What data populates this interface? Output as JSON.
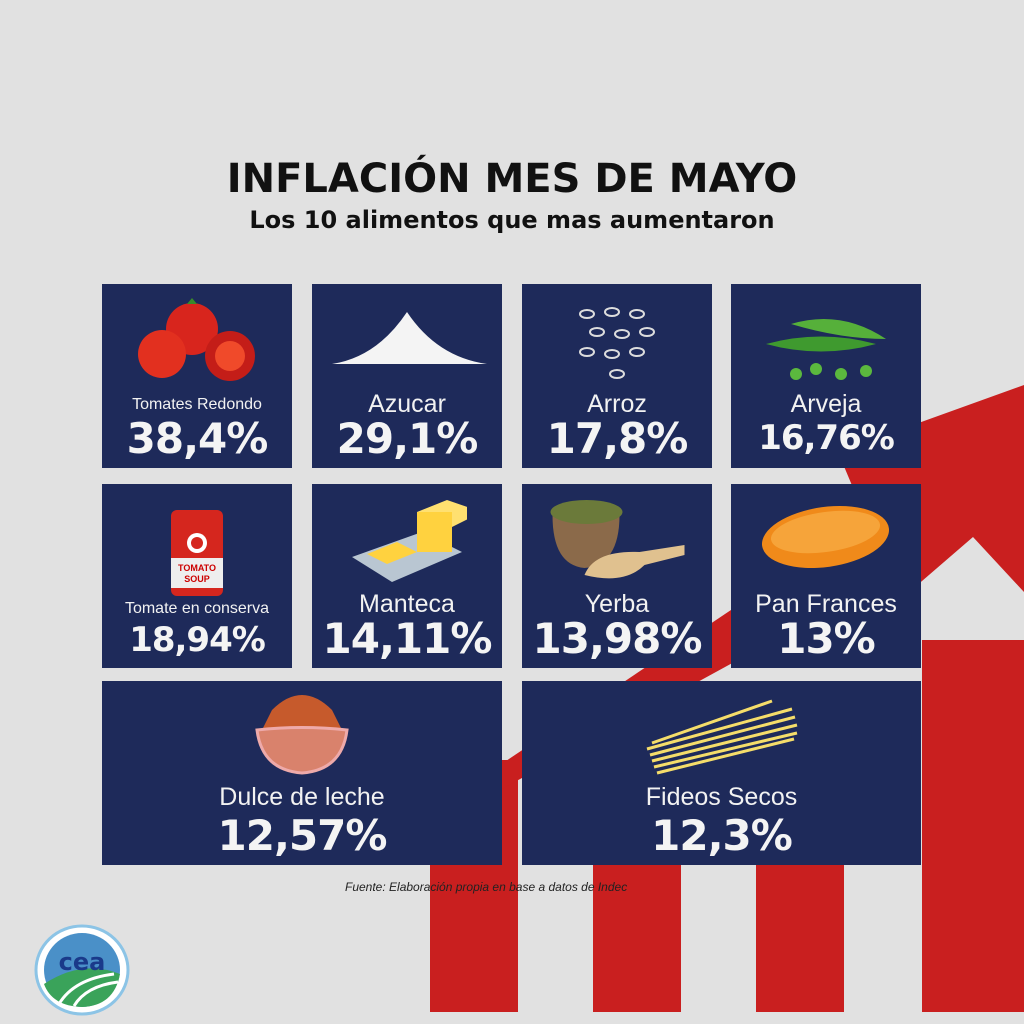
{
  "title": "INFLACIÓN MES DE MAYO",
  "subtitle": "Los 10 alimentos que mas aumentaron",
  "items": [
    {
      "label": "Tomates Redondo",
      "value": "38,4%",
      "icon": "tomato-icon"
    },
    {
      "label": "Azucar",
      "value": "29,1%",
      "icon": "sugar-icon"
    },
    {
      "label": "Arroz",
      "value": "17,8%",
      "icon": "rice-icon"
    },
    {
      "label": "Arveja",
      "value": "16,76%",
      "icon": "peas-icon"
    },
    {
      "label": "Tomate en conserva",
      "value": "18,94%",
      "icon": "tomato-can-icon",
      "can_text": "TOMATO SOUP"
    },
    {
      "label": "Manteca",
      "value": "14,11%",
      "icon": "butter-icon"
    },
    {
      "label": "Yerba",
      "value": "13,98%",
      "icon": "yerba-icon"
    },
    {
      "label": "Pan Frances",
      "value": "13%",
      "icon": "bread-icon"
    },
    {
      "label": "Dulce de leche",
      "value": "12,57%",
      "icon": "dulce-de-leche-icon"
    },
    {
      "label": "Fideos Secos",
      "value": "12,3%",
      "icon": "pasta-icon"
    }
  ],
  "source": "Fuente: Elaboración propia en base a datos de Indec",
  "logo_text": "cea",
  "colors": {
    "background": "#e1e1e1",
    "card": "#1e2a5a",
    "accent": "#c91f1f"
  }
}
